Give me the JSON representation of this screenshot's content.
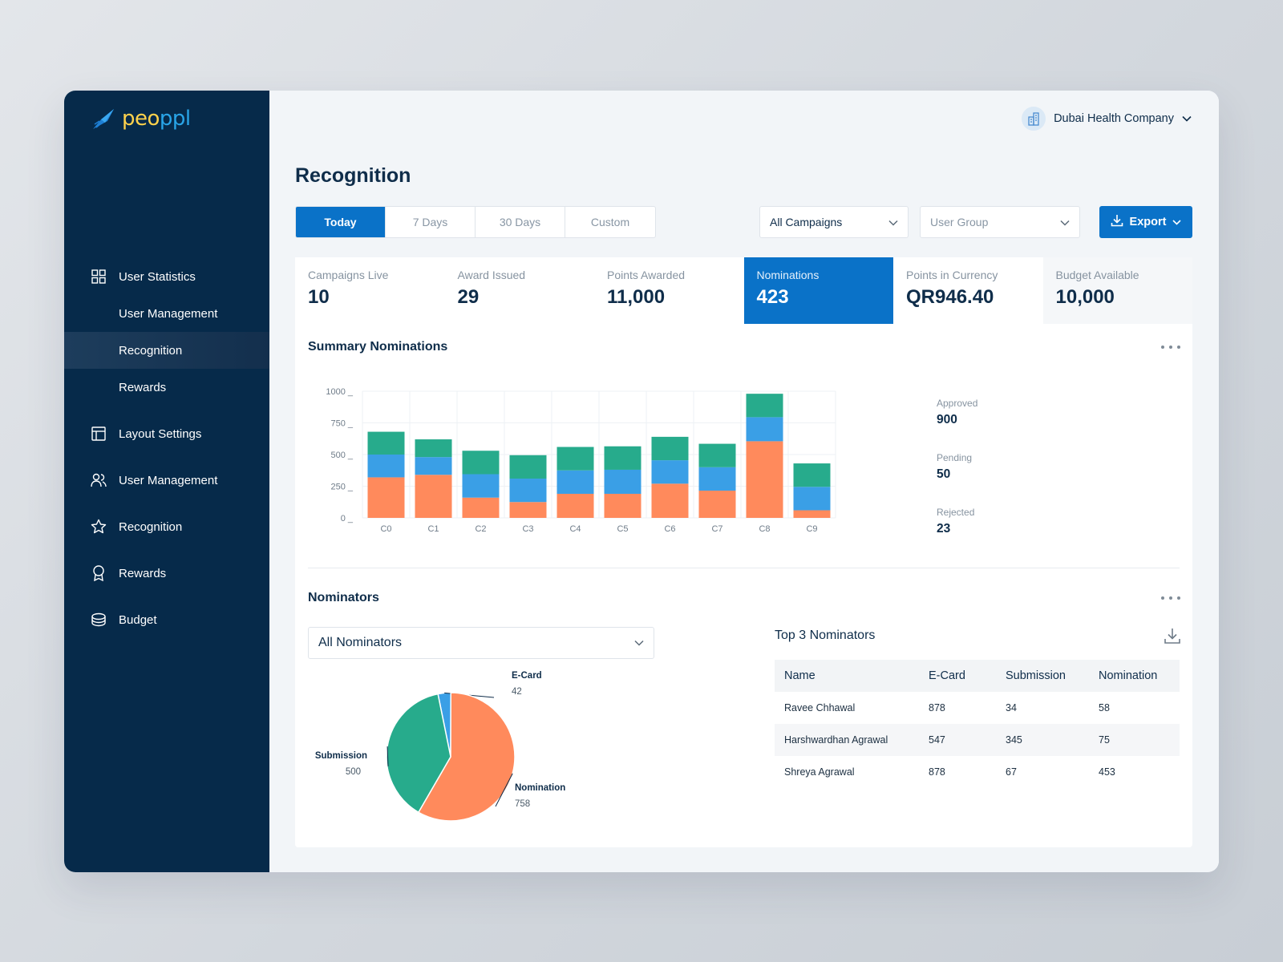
{
  "app": {
    "logo_text_main": "peo",
    "logo_text_tail": "ppl"
  },
  "sidebar": {
    "items": [
      {
        "label": "User Statistics",
        "icon": "grid-icon"
      },
      {
        "label": "User Management",
        "icon": ""
      },
      {
        "label": "Recognition",
        "icon": "",
        "active": true
      },
      {
        "label": "Rewards",
        "icon": ""
      },
      {
        "label": "Layout Settings",
        "icon": "layout-icon"
      },
      {
        "label": "User Management",
        "icon": "users-icon"
      },
      {
        "label": "Recognition",
        "icon": "star-icon"
      },
      {
        "label": "Rewards",
        "icon": "award-icon"
      },
      {
        "label": "Budget",
        "icon": "coins-icon"
      }
    ]
  },
  "header": {
    "company": "Dubai Health Company",
    "page_title": "Recognition"
  },
  "filters": {
    "ranges": [
      "Today",
      "7 Days",
      "30 Days",
      "Custom"
    ],
    "active_range": "Today",
    "campaigns": "All Campaigns",
    "user_group_placeholder": "User Group",
    "export_label": "Export"
  },
  "stats": [
    {
      "label": "Campaigns Live",
      "value": "10"
    },
    {
      "label": "Award Issued",
      "value": "29"
    },
    {
      "label": "Points Awarded",
      "value": "11,000"
    },
    {
      "label": "Nominations",
      "value": "423",
      "active": true
    },
    {
      "label": "Points in Currency",
      "value": "QR946.40"
    },
    {
      "label": "Budget Available",
      "value": "10,000"
    }
  ],
  "summary": {
    "title": "Summary Nominations",
    "totals": [
      {
        "label": "Approved",
        "value": "900"
      },
      {
        "label": "Pending",
        "value": "50"
      },
      {
        "label": "Rejected",
        "value": "23"
      }
    ]
  },
  "chart_data": [
    {
      "type": "bar",
      "stacked": true,
      "categories": [
        "C0",
        "C1",
        "C2",
        "C3",
        "C4",
        "C5",
        "C6",
        "C7",
        "C8",
        "C9"
      ],
      "y_ticks": [
        "1000",
        "750",
        "500",
        "250",
        "0"
      ],
      "ylim": [
        0,
        1000
      ],
      "grid": true,
      "series": [
        {
          "values": [
            320,
            340,
            160,
            125,
            190,
            190,
            270,
            215,
            605,
            60
          ],
          "color": "#ff8a5c"
        },
        {
          "values": [
            180,
            140,
            185,
            185,
            185,
            190,
            185,
            185,
            190,
            185
          ],
          "color": "#3a9fe6"
        },
        {
          "values": [
            180,
            140,
            185,
            185,
            185,
            185,
            185,
            185,
            185,
            185
          ],
          "color": "#27ab8c"
        }
      ]
    },
    {
      "type": "pie",
      "slices": [
        {
          "label": "E-Card",
          "value": 42,
          "color": "#3a9fe6"
        },
        {
          "label": "Nomination",
          "value": 758,
          "color": "#ff8a5c"
        },
        {
          "label": "Submission",
          "value": 500,
          "color": "#27ab8c"
        }
      ]
    }
  ],
  "nominators": {
    "title": "Nominators",
    "dropdown_value": "All Nominators",
    "top_title": "Top 3 Nominators",
    "columns": [
      "Name",
      "E-Card",
      "Submission",
      "Nomination"
    ],
    "rows": [
      [
        "Ravee Chhawal",
        "878",
        "34",
        "58"
      ],
      [
        "Harshwardhan Agrawal",
        "547",
        "345",
        "75"
      ],
      [
        "Shreya Agrawal",
        "878",
        "67",
        "453"
      ]
    ]
  }
}
